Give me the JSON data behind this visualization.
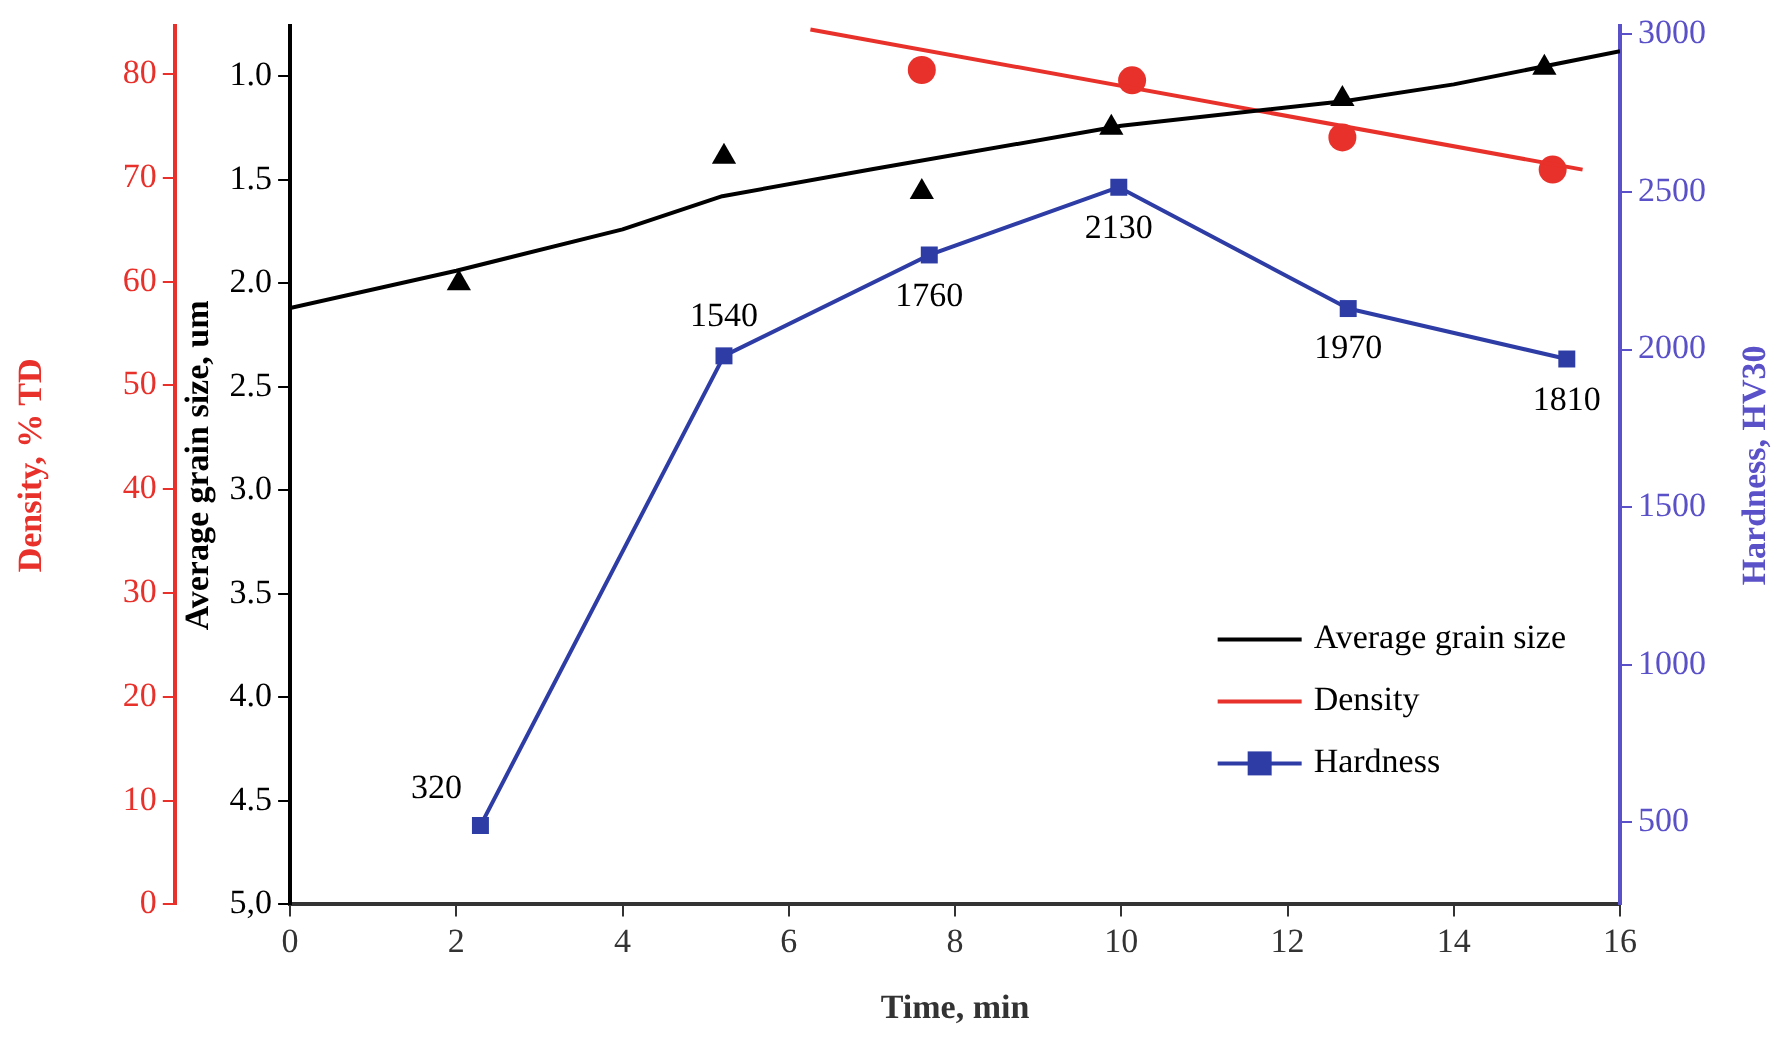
{
  "chart_data": {
    "type": "line",
    "xlabel": "Time, min",
    "ylabel": "Average grain size, um",
    "y2label": "Hardness, HV30",
    "y3label": "Density, % TD",
    "xlim": [
      0,
      16
    ],
    "xticks": [
      0,
      2,
      4,
      6,
      8,
      10,
      12,
      14,
      16
    ],
    "ylim": [
      5.0,
      0.76
    ],
    "yticks": [
      {
        "value": 1,
        "label": "1.0"
      },
      {
        "value": 1.5,
        "label": "1.5"
      },
      {
        "value": 2,
        "label": "2.0"
      },
      {
        "value": 2.5,
        "label": "2.5"
      },
      {
        "value": 3,
        "label": "3.0"
      },
      {
        "value": 3.5,
        "label": "3.5"
      },
      {
        "value": 4,
        "label": "4.0"
      },
      {
        "value": 4.5,
        "label": "4.5"
      },
      {
        "value": 5,
        "label": "5,0"
      }
    ],
    "y2lim": [
      240,
      3025
    ],
    "y2ticks": [
      500,
      1000,
      1500,
      2000,
      2500,
      3000
    ],
    "y3lim": [
      0,
      84.6
    ],
    "y3ticks": [
      0,
      10,
      20,
      30,
      40,
      50,
      60,
      70,
      80
    ],
    "grid": false,
    "legend": "bottom right",
    "series": [
      {
        "name": "Average grain size",
        "type": "line",
        "marker": "none",
        "color": "#000000",
        "axis": "y",
        "x": [
          0,
          2,
          4,
          5.2,
          7,
          10,
          12.7,
          14,
          16
        ],
        "values": [
          2.12,
          1.94,
          1.74,
          1.58,
          1.45,
          1.24,
          1.12,
          1.04,
          0.88
        ]
      },
      {
        "type": "scatter",
        "marker": "triangle",
        "color": "#000000",
        "axis": "y",
        "x": [
          2.03,
          5.22,
          7.6,
          9.88,
          12.66,
          15.09
        ],
        "values": [
          2.0,
          1.39,
          1.56,
          1.25,
          1.11,
          0.96
        ]
      },
      {
        "name": "Density",
        "type": "line",
        "marker": "none",
        "color": "#e8312a",
        "axis": "y3",
        "x": [
          6.26,
          15.55
        ],
        "values": [
          84.3,
          70.8
        ]
      },
      {
        "type": "scatter",
        "marker": "circle",
        "color": "#e8312a",
        "axis": "y3",
        "x": [
          7.6,
          10.13,
          12.66,
          15.19
        ],
        "values": [
          80.4,
          79.4,
          73.9,
          70.8
        ]
      },
      {
        "name": "Hardness",
        "type": "line",
        "marker": "square",
        "color": "#2e3da6",
        "axis": "y2",
        "x": [
          2.29,
          5.22,
          7.69,
          9.97,
          12.73,
          15.36
        ],
        "values": [
          490,
          1980,
          2300,
          2515,
          2130,
          1970
        ]
      }
    ],
    "annotations": [
      {
        "text": "320",
        "x": 2.29,
        "y": 4.62
      },
      {
        "text": "1540",
        "x": 5.22,
        "y": 2.34
      },
      {
        "text": "1760",
        "x": 7.69,
        "y": 1.87
      },
      {
        "text": "2130",
        "x": 9.97,
        "y": 1.54
      },
      {
        "text": "1970",
        "x": 12.73,
        "y": 2.12
      },
      {
        "text": "1810",
        "x": 15.36,
        "y": 2.37
      }
    ]
  }
}
